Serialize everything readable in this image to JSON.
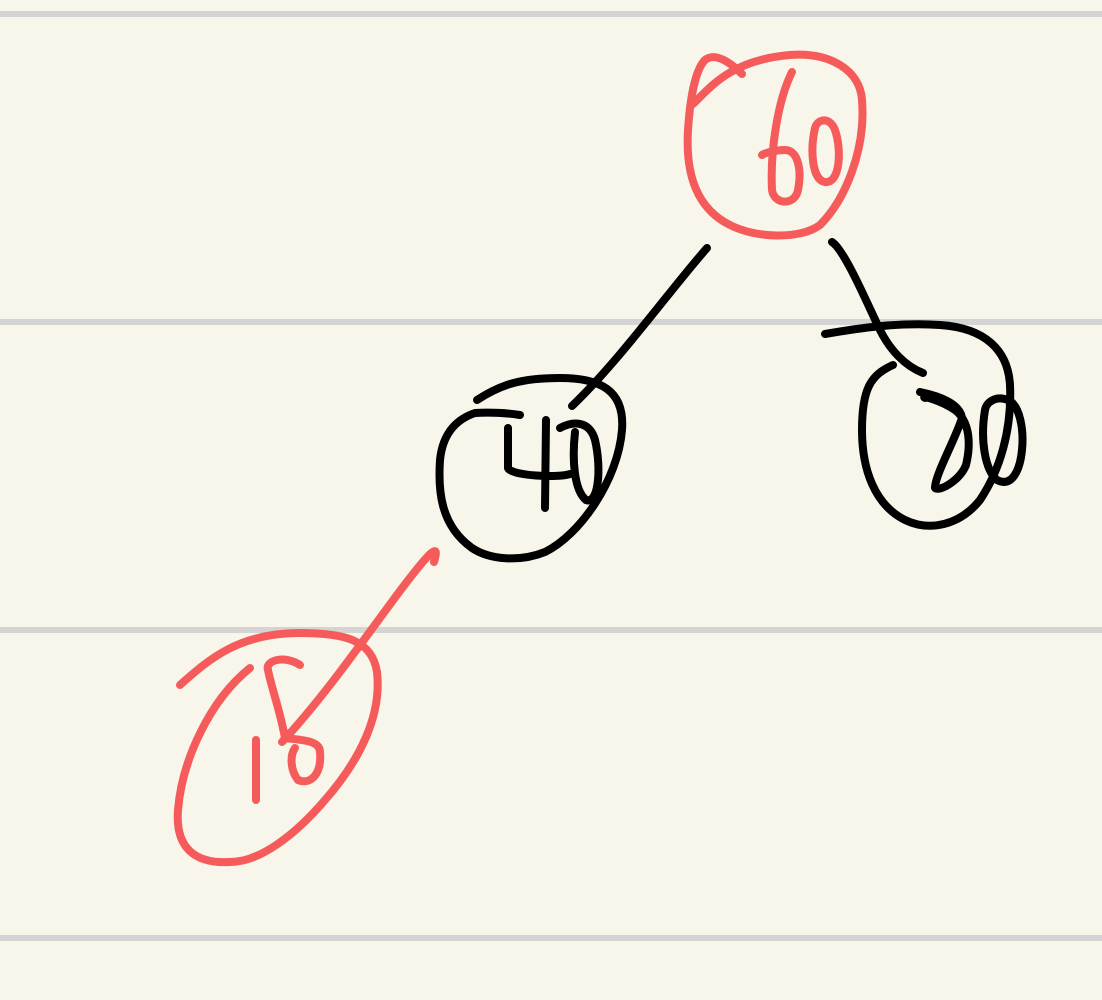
{
  "colors": {
    "paper": "#f8f6ea",
    "rule_line": "#d4d4d4",
    "black_ink": "#000000",
    "red_ink": "#f55b5b"
  },
  "tree": {
    "nodes": [
      {
        "id": "root",
        "label": "60",
        "color": "red"
      },
      {
        "id": "left",
        "label": "40",
        "color": "black"
      },
      {
        "id": "right",
        "label": "80",
        "color": "black"
      },
      {
        "id": "left-left",
        "label": "15",
        "color": "red"
      }
    ],
    "edges": [
      {
        "from": "root",
        "to": "left"
      },
      {
        "from": "root",
        "to": "right"
      },
      {
        "from": "left",
        "to": "left-left"
      }
    ]
  }
}
